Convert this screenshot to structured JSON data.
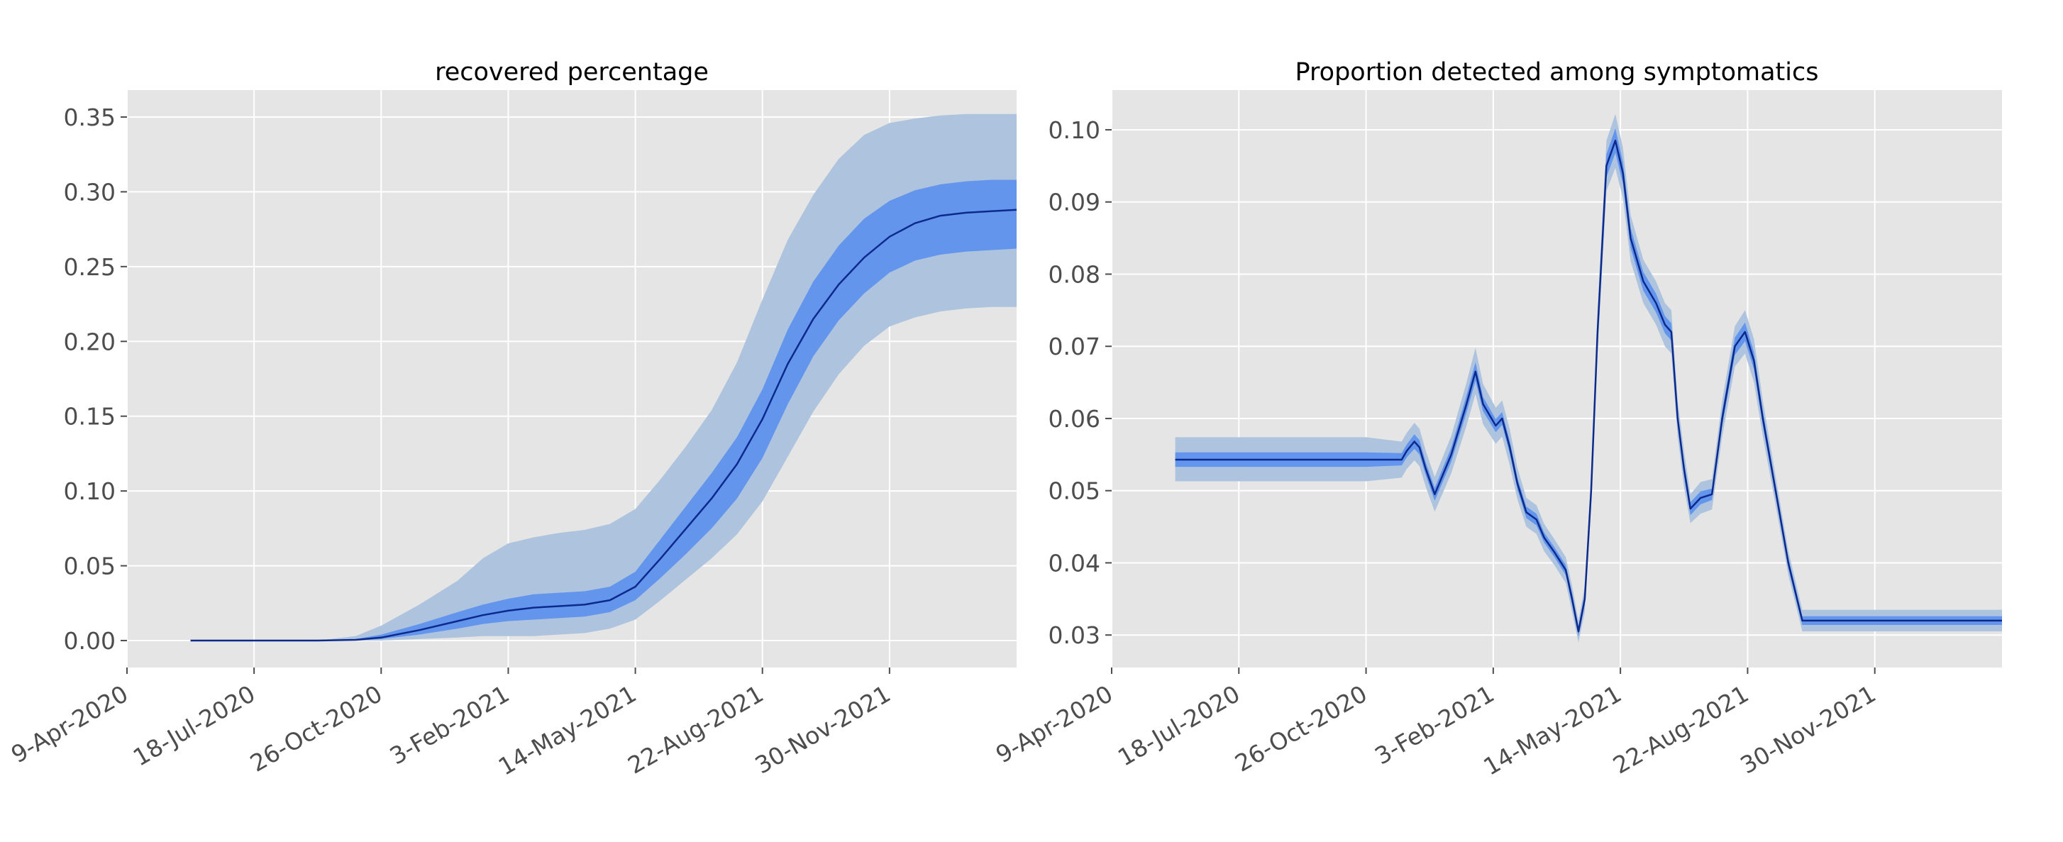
{
  "colors": {
    "axes_bg": "#e5e5e5",
    "grid": "#ffffff",
    "median_line": "#0c2a8c",
    "band_50": "#6495ed",
    "band_90": "#aec4de",
    "tick_text": "#4d4d4d"
  },
  "chart_data": [
    {
      "type": "area",
      "title": "recovered percentage",
      "xlabel": "",
      "ylabel": "",
      "x_axis_type": "date",
      "x_range": [
        "2020-04-09",
        "2022-03-10"
      ],
      "ylim": [
        -0.018,
        0.368
      ],
      "x_ticks": [
        {
          "date": "2020-04-09",
          "label": "9-Apr-2020"
        },
        {
          "date": "2020-07-18",
          "label": "18-Jul-2020"
        },
        {
          "date": "2020-10-26",
          "label": "26-Oct-2020"
        },
        {
          "date": "2021-02-03",
          "label": "3-Feb-2021"
        },
        {
          "date": "2021-05-14",
          "label": "14-May-2021"
        },
        {
          "date": "2021-08-22",
          "label": "22-Aug-2021"
        },
        {
          "date": "2021-11-30",
          "label": "30-Nov-2021"
        }
      ],
      "y_ticks": [
        {
          "value": 0.0,
          "label": "0.00"
        },
        {
          "value": 0.05,
          "label": "0.05"
        },
        {
          "value": 0.1,
          "label": "0.10"
        },
        {
          "value": 0.15,
          "label": "0.15"
        },
        {
          "value": 0.2,
          "label": "0.20"
        },
        {
          "value": 0.25,
          "label": "0.25"
        },
        {
          "value": 0.3,
          "label": "0.30"
        },
        {
          "value": 0.35,
          "label": "0.35"
        }
      ],
      "grid": true,
      "series": {
        "date": [
          "2020-05-29",
          "2020-07-18",
          "2020-09-06",
          "2020-10-06",
          "2020-10-26",
          "2020-11-25",
          "2020-12-25",
          "2021-01-14",
          "2021-02-03",
          "2021-02-23",
          "2021-03-15",
          "2021-04-04",
          "2021-04-24",
          "2021-05-14",
          "2021-06-03",
          "2021-06-23",
          "2021-07-13",
          "2021-08-02",
          "2021-08-22",
          "2021-09-11",
          "2021-10-01",
          "2021-10-21",
          "2021-11-10",
          "2021-11-30",
          "2021-12-20",
          "2022-01-09",
          "2022-01-29",
          "2022-02-18",
          "2022-03-10"
        ],
        "median": [
          0.0,
          0.0,
          0.0,
          0.0005,
          0.002,
          0.007,
          0.013,
          0.017,
          0.02,
          0.022,
          0.023,
          0.024,
          0.027,
          0.036,
          0.055,
          0.075,
          0.095,
          0.118,
          0.148,
          0.185,
          0.215,
          0.238,
          0.256,
          0.27,
          0.279,
          0.284,
          0.286,
          0.287,
          0.288
        ],
        "p25": [
          0.0,
          0.0,
          0.0,
          0.0,
          0.001,
          0.004,
          0.008,
          0.011,
          0.013,
          0.014,
          0.015,
          0.016,
          0.019,
          0.027,
          0.042,
          0.058,
          0.075,
          0.095,
          0.122,
          0.158,
          0.19,
          0.214,
          0.232,
          0.246,
          0.254,
          0.258,
          0.26,
          0.261,
          0.262
        ],
        "p75": [
          0.0,
          0.0,
          0.0,
          0.001,
          0.004,
          0.011,
          0.019,
          0.024,
          0.028,
          0.031,
          0.032,
          0.033,
          0.036,
          0.046,
          0.068,
          0.09,
          0.112,
          0.136,
          0.168,
          0.208,
          0.24,
          0.264,
          0.282,
          0.294,
          0.301,
          0.305,
          0.307,
          0.308,
          0.308
        ],
        "p05": [
          0.0,
          0.0,
          0.0,
          0.0,
          0.0,
          0.001,
          0.002,
          0.003,
          0.003,
          0.003,
          0.004,
          0.005,
          0.008,
          0.014,
          0.027,
          0.041,
          0.055,
          0.071,
          0.093,
          0.123,
          0.153,
          0.178,
          0.197,
          0.21,
          0.216,
          0.22,
          0.222,
          0.223,
          0.223
        ],
        "p95": [
          0.0,
          0.0,
          0.0,
          0.003,
          0.01,
          0.024,
          0.04,
          0.055,
          0.065,
          0.069,
          0.072,
          0.074,
          0.078,
          0.088,
          0.108,
          0.13,
          0.154,
          0.186,
          0.228,
          0.268,
          0.298,
          0.322,
          0.338,
          0.346,
          0.349,
          0.351,
          0.352,
          0.352,
          0.352
        ]
      }
    },
    {
      "type": "area",
      "title": "Proportion detected among symptomatics",
      "xlabel": "",
      "ylabel": "",
      "x_axis_type": "date",
      "x_range": [
        "2020-04-09",
        "2022-03-10"
      ],
      "ylim": [
        0.0255,
        0.1055
      ],
      "x_ticks": [
        {
          "date": "2020-04-09",
          "label": "9-Apr-2020"
        },
        {
          "date": "2020-07-18",
          "label": "18-Jul-2020"
        },
        {
          "date": "2020-10-26",
          "label": "26-Oct-2020"
        },
        {
          "date": "2021-02-03",
          "label": "3-Feb-2021"
        },
        {
          "date": "2021-05-14",
          "label": "14-May-2021"
        },
        {
          "date": "2021-08-22",
          "label": "22-Aug-2021"
        },
        {
          "date": "2021-11-30",
          "label": "30-Nov-2021"
        }
      ],
      "y_ticks": [
        {
          "value": 0.03,
          "label": "0.03"
        },
        {
          "value": 0.04,
          "label": "0.04"
        },
        {
          "value": 0.05,
          "label": "0.05"
        },
        {
          "value": 0.06,
          "label": "0.06"
        },
        {
          "value": 0.07,
          "label": "0.07"
        },
        {
          "value": 0.08,
          "label": "0.08"
        },
        {
          "value": 0.09,
          "label": "0.09"
        },
        {
          "value": 0.1,
          "label": "0.10"
        }
      ],
      "grid": true,
      "series": {
        "date": [
          "2020-05-29",
          "2020-07-18",
          "2020-09-06",
          "2020-10-26",
          "2020-11-23",
          "2020-11-27",
          "2020-12-03",
          "2020-12-07",
          "2020-12-12",
          "2020-12-19",
          "2021-01-01",
          "2021-01-13",
          "2021-01-20",
          "2021-01-26",
          "2021-02-05",
          "2021-02-10",
          "2021-02-16",
          "2021-02-22",
          "2021-03-01",
          "2021-03-09",
          "2021-03-15",
          "2021-03-23",
          "2021-04-01",
          "2021-04-06",
          "2021-04-11",
          "2021-04-16",
          "2021-04-21",
          "2021-04-26",
          "2021-05-03",
          "2021-05-10",
          "2021-05-16",
          "2021-05-22",
          "2021-06-01",
          "2021-06-11",
          "2021-06-18",
          "2021-06-23",
          "2021-06-28",
          "2021-07-03",
          "2021-07-08",
          "2021-07-16",
          "2021-07-25",
          "2021-08-02",
          "2021-08-12",
          "2021-08-20",
          "2021-08-27",
          "2021-09-03",
          "2021-09-13",
          "2021-09-23",
          "2021-10-04",
          "2021-10-26",
          "2021-11-30",
          "2022-01-01",
          "2022-03-10"
        ],
        "median": [
          0.0543,
          0.0543,
          0.0543,
          0.0543,
          0.0543,
          0.0555,
          0.0568,
          0.056,
          0.053,
          0.0495,
          0.055,
          0.062,
          0.0665,
          0.062,
          0.059,
          0.06,
          0.056,
          0.051,
          0.047,
          0.046,
          0.0435,
          0.0415,
          0.039,
          0.035,
          0.0305,
          0.035,
          0.05,
          0.072,
          0.095,
          0.0985,
          0.094,
          0.085,
          0.079,
          0.076,
          0.073,
          0.072,
          0.06,
          0.053,
          0.0475,
          0.049,
          0.0495,
          0.06,
          0.07,
          0.072,
          0.068,
          0.06,
          0.05,
          0.04,
          0.032,
          0.032,
          0.032,
          0.032,
          0.032
        ],
        "p25": [
          0.0533,
          0.0533,
          0.0533,
          0.0533,
          0.0535,
          0.0546,
          0.0558,
          0.055,
          0.0521,
          0.0486,
          0.054,
          0.0608,
          0.0652,
          0.061,
          0.0581,
          0.0591,
          0.0551,
          0.0502,
          0.0462,
          0.0452,
          0.0428,
          0.0408,
          0.0383,
          0.0342,
          0.0298,
          0.0342,
          0.049,
          0.0706,
          0.0934,
          0.0968,
          0.0925,
          0.0836,
          0.0777,
          0.0747,
          0.0718,
          0.0708,
          0.059,
          0.052,
          0.0466,
          0.0481,
          0.0487,
          0.059,
          0.0688,
          0.0707,
          0.0668,
          0.059,
          0.0492,
          0.0393,
          0.0314,
          0.0314,
          0.0314,
          0.0314,
          0.0314
        ],
        "p75": [
          0.0553,
          0.0553,
          0.0553,
          0.0553,
          0.0552,
          0.0564,
          0.0578,
          0.057,
          0.0539,
          0.0504,
          0.056,
          0.0632,
          0.0678,
          0.063,
          0.0599,
          0.0609,
          0.0569,
          0.0518,
          0.0478,
          0.0468,
          0.0442,
          0.0422,
          0.0397,
          0.0358,
          0.0312,
          0.0358,
          0.051,
          0.0734,
          0.0966,
          0.1002,
          0.0955,
          0.0864,
          0.0803,
          0.0773,
          0.0742,
          0.0732,
          0.061,
          0.054,
          0.0484,
          0.0499,
          0.0503,
          0.061,
          0.0712,
          0.0733,
          0.0692,
          0.061,
          0.0508,
          0.0407,
          0.0326,
          0.0326,
          0.0326,
          0.0326,
          0.0326
        ],
        "p05": [
          0.0513,
          0.0513,
          0.0513,
          0.0513,
          0.0518,
          0.053,
          0.0542,
          0.0534,
          0.0505,
          0.0471,
          0.0524,
          0.059,
          0.0634,
          0.0592,
          0.0565,
          0.0575,
          0.0535,
          0.0488,
          0.045,
          0.044,
          0.0416,
          0.0397,
          0.0372,
          0.0332,
          0.029,
          0.0332,
          0.0478,
          0.069,
          0.0915,
          0.0947,
          0.0905,
          0.0818,
          0.076,
          0.073,
          0.07,
          0.069,
          0.0575,
          0.0505,
          0.0455,
          0.0468,
          0.0474,
          0.0575,
          0.0672,
          0.069,
          0.065,
          0.0575,
          0.048,
          0.0383,
          0.0305,
          0.0305,
          0.0305,
          0.0305,
          0.0305
        ],
        "p95": [
          0.0574,
          0.0574,
          0.0574,
          0.0574,
          0.0568,
          0.058,
          0.0594,
          0.0586,
          0.0555,
          0.0519,
          0.0576,
          0.065,
          0.0698,
          0.0648,
          0.0615,
          0.0625,
          0.0585,
          0.0532,
          0.049,
          0.048,
          0.0454,
          0.0433,
          0.0408,
          0.0368,
          0.032,
          0.0368,
          0.0522,
          0.075,
          0.0985,
          0.1022,
          0.0975,
          0.0882,
          0.082,
          0.079,
          0.076,
          0.075,
          0.0625,
          0.0555,
          0.0495,
          0.0512,
          0.0516,
          0.0625,
          0.0728,
          0.075,
          0.071,
          0.0625,
          0.052,
          0.0417,
          0.0335,
          0.0335,
          0.0335,
          0.0335,
          0.0335
        ]
      }
    }
  ]
}
